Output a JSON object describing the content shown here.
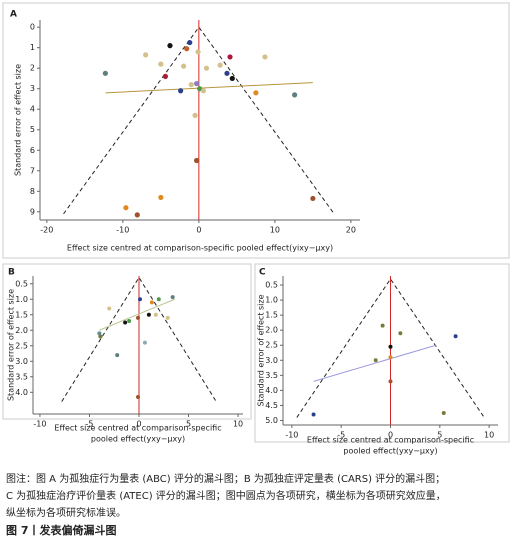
{
  "chart_data": [
    {
      "type": "scatter",
      "panel": "A",
      "ylabel": "Standard error of effect size",
      "xlabel": "Effect size centred at comparison-specific pooled effect(yixy−μxy)",
      "xlim": [
        -20.9,
        21.2
      ],
      "xticks": [
        -20,
        -10,
        0,
        10,
        20
      ],
      "ylim": [
        -0.35,
        9.4
      ],
      "yticks": [
        0,
        1,
        2,
        3,
        4,
        5,
        6,
        7,
        8,
        9
      ],
      "y_inverted": true,
      "x": [
        -3.8,
        -1.2,
        -1.6,
        -7.0,
        -0.1,
        4.1,
        2.8,
        8.7,
        -12.3,
        -4.4,
        3.7,
        4.4,
        -2.4,
        -0.3,
        0.1,
        0.6,
        7.5,
        12.6,
        -1.0,
        -5.0,
        -2.0,
        1.0,
        -0.5,
        -0.3,
        -5.0,
        -9.6,
        -8.1,
        15.0
      ],
      "y": [
        0.9,
        0.75,
        1.05,
        1.35,
        1.2,
        1.45,
        1.85,
        1.45,
        2.25,
        2.4,
        2.25,
        2.5,
        3.1,
        2.75,
        3.0,
        3.1,
        3.2,
        3.3,
        2.8,
        1.8,
        1.9,
        2.0,
        4.3,
        6.5,
        8.3,
        8.8,
        9.15,
        8.35
      ],
      "colors": [
        "#111111",
        "#2b3f8c",
        "#c0602a",
        "#d4c08a",
        "#d4c08a",
        "#b0183a",
        "#d4c08a",
        "#d4c08a",
        "#5f7f7f",
        "#b0183a",
        "#2b3f8c",
        "#111111",
        "#2b3f8c",
        "#8e7cc3",
        "#4a9a4a",
        "#d4c08a",
        "#e08a1e",
        "#5f7f7f",
        "#d4c08a",
        "#d4c08a",
        "#d4c08a",
        "#d4c08a",
        "#d4c08a",
        "#a0522d",
        "#e08a1e",
        "#e08a1e",
        "#a0522d",
        "#a0522d"
      ],
      "fit_line": {
        "x": [
          -12.3,
          15.0
        ],
        "y": [
          3.2,
          2.7
        ],
        "color": "#b8963a"
      },
      "funnel": {
        "x": [
          -17.8,
          0,
          17.8
        ],
        "y": [
          9.1,
          0,
          9.1
        ]
      },
      "reference_x": 0,
      "reference_color": "#d62728"
    },
    {
      "type": "scatter",
      "panel": "B",
      "ylabel": "Standard error of effect size",
      "xlabel": [
        "Effect size centred at comparison-specific",
        "pooled effect(yxy−μxy)"
      ],
      "xlim": [
        -10.7,
        10.5
      ],
      "xticks": [
        -10,
        -5,
        0,
        5,
        10
      ],
      "ylim": [
        0.25,
        4.7
      ],
      "yticks": [
        0.5,
        {
          "value": 1,
          "label": "1.0"
        },
        1.5,
        {
          "value": 2,
          "label": "2.0"
        },
        2.5,
        {
          "value": 3,
          "label": "3.0"
        },
        3.5,
        {
          "value": 4,
          "label": "4.0"
        }
      ],
      "y_inverted": true,
      "x": [
        3.4,
        1.3,
        0.1,
        -3.0,
        -1.4,
        1.7,
        -0.1,
        -4.0,
        -2.2,
        0.6,
        2.9,
        1.0,
        -3.9,
        -1.0,
        2.0,
        -0.1
      ],
      "y": [
        0.93,
        1.1,
        1.0,
        1.3,
        1.75,
        1.5,
        1.6,
        2.1,
        2.8,
        2.4,
        1.6,
        1.5,
        2.2,
        1.7,
        1.0,
        4.15
      ],
      "colors": [
        "#5f7f7f",
        "#e08a1e",
        "#2b3f8c",
        "#d4c08a",
        "#111111",
        "#d4c08a",
        "#a0522d",
        "#5f8f8f",
        "#5f7f7f",
        "#8faab0",
        "#d4c08a",
        "#111111",
        "#7a7a3a",
        "#4a9a4a",
        "#4a9a4a",
        "#a0522d"
      ],
      "fit_line": {
        "x": [
          -4.0,
          3.6
        ],
        "y": [
          2.0,
          1.0
        ],
        "color": "#b8c890"
      },
      "funnel": {
        "x": [
          -7.8,
          0,
          7.8
        ],
        "y": [
          4.3,
          0.3,
          4.3
        ]
      },
      "reference_x": 0,
      "reference_color": "#d62728"
    },
    {
      "type": "scatter",
      "panel": "C",
      "ylabel": "Standard error of effect size",
      "xlabel": [
        "Effect size centred at comparison-specific",
        "pooled effect(yxy−μxy)"
      ],
      "xlim": [
        -10.9,
        10.9
      ],
      "xticks": [
        -10,
        -5,
        0,
        5,
        10
      ],
      "ylim": [
        0.2,
        5.15
      ],
      "yticks": [
        0.5,
        {
          "value": 1,
          "label": "1.0"
        },
        1.5,
        {
          "value": 2,
          "label": "2.0"
        },
        2.5,
        {
          "value": 3,
          "label": "3.0"
        },
        3.5,
        {
          "value": 4,
          "label": "4.0"
        },
        4.5,
        {
          "value": 5,
          "label": "5.0"
        }
      ],
      "y_inverted": true,
      "x": [
        -0.8,
        1.0,
        6.6,
        0.0,
        0.0,
        -1.5,
        0.0,
        5.4,
        -7.8
      ],
      "y": [
        1.85,
        2.1,
        2.2,
        2.55,
        2.9,
        3.0,
        3.7,
        4.75,
        4.8
      ],
      "colors": [
        "#7a7a3a",
        "#7a7a3a",
        "#2b3f8c",
        "#111111",
        "#e08a1e",
        "#7a7a3a",
        "#a0522d",
        "#7a7a3a",
        "#2b3f8c"
      ],
      "fit_line": {
        "x": [
          -7.8,
          4.6
        ],
        "y": [
          3.7,
          2.5
        ],
        "color": "#9a9ae0"
      },
      "funnel": {
        "x": [
          -9.5,
          0,
          9.5
        ],
        "y": [
          4.9,
          0.3,
          4.9
        ]
      },
      "reference_x": 0,
      "reference_color": "#d62728"
    }
  ],
  "caption": {
    "lines": [
      "图注：图 A 为孤独症行为量表 (ABC) 评分的漏斗图；B 为孤独症评定量表 (CARS) 评分的漏斗图；",
      "C 为孤独症治疗评价量表 (ATEC) 评分的漏斗图；图中圆点为各项研究，横坐标为各项研究效应量，",
      "纵坐标为各项研究标准误。"
    ],
    "figure": "图 7丨发表偏倚漏斗图"
  }
}
